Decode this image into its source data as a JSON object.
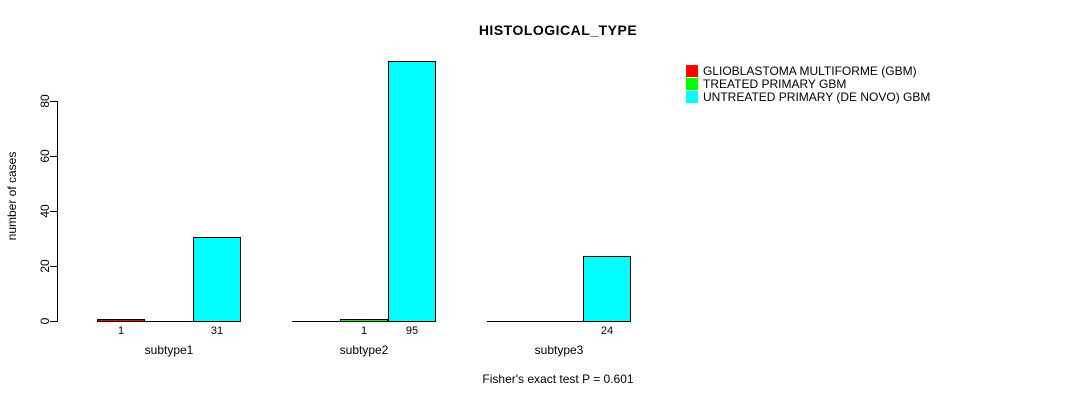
{
  "chart_data": {
    "type": "bar",
    "title": "HISTOLOGICAL_TYPE",
    "ylabel": "number of cases",
    "xlabel": "",
    "categories": [
      "subtype1",
      "subtype2",
      "subtype3"
    ],
    "series": [
      {
        "name": "GLIOBLASTOMA MULTIFORME (GBM)",
        "color": "#ff0000",
        "values": [
          1,
          0,
          0
        ]
      },
      {
        "name": "TREATED PRIMARY GBM",
        "color": "#00ff00",
        "values": [
          0,
          1,
          0
        ]
      },
      {
        "name": "UNTREATED PRIMARY (DE NOVO) GBM",
        "color": "#00ffff",
        "values": [
          31,
          95,
          24
        ]
      }
    ],
    "bar_value_labels": [
      [
        "1",
        "",
        ""
      ],
      [
        "",
        "1",
        ""
      ],
      [
        "31",
        "95",
        "24"
      ]
    ],
    "yticks": [
      0,
      20,
      40,
      60,
      80
    ],
    "ylim": [
      0,
      95
    ],
    "grid": false,
    "legend_position": "top-right",
    "annotation": "Fisher's exact test P = 0.601"
  }
}
